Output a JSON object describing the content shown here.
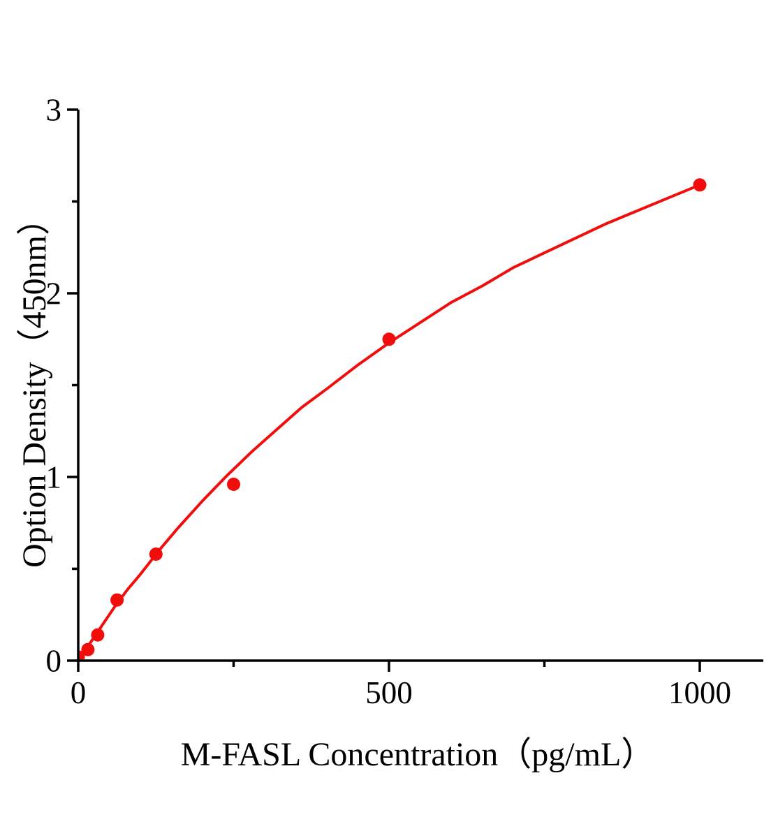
{
  "chart_data": {
    "type": "scatter",
    "title": "",
    "xlabel": "M-FASL Concentration（pg/mL）",
    "ylabel": "Option Density（450nm）",
    "x_unit": "pg/mL",
    "y_unit": "OD at 450nm",
    "xlim": [
      0,
      1105
    ],
    "ylim": [
      0,
      3
    ],
    "grid": false,
    "legend": null,
    "x_ticks_major": [
      0,
      500,
      1000
    ],
    "x_ticks_minor": [
      250,
      750
    ],
    "y_ticks_major": [
      0,
      1,
      2,
      3
    ],
    "y_ticks_minor": [
      0.5,
      1.5,
      2.5
    ],
    "x_tick_labels": [
      "0",
      "500",
      "1000"
    ],
    "y_tick_labels": [
      "0",
      "1",
      "2",
      "3"
    ],
    "points": [
      {
        "x": 0,
        "y": 0.02
      },
      {
        "x": 15.6,
        "y": 0.06
      },
      {
        "x": 31.3,
        "y": 0.14
      },
      {
        "x": 62.5,
        "y": 0.33
      },
      {
        "x": 125,
        "y": 0.58
      },
      {
        "x": 250,
        "y": 0.96
      },
      {
        "x": 500,
        "y": 1.75
      },
      {
        "x": 1000,
        "y": 2.59
      }
    ],
    "fit_curve": [
      [
        0,
        0.0
      ],
      [
        20,
        0.1
      ],
      [
        40,
        0.2
      ],
      [
        60,
        0.3
      ],
      [
        80,
        0.39
      ],
      [
        100,
        0.47
      ],
      [
        130,
        0.6
      ],
      [
        160,
        0.72
      ],
      [
        200,
        0.87
      ],
      [
        240,
        1.01
      ],
      [
        280,
        1.14
      ],
      [
        320,
        1.26
      ],
      [
        360,
        1.38
      ],
      [
        400,
        1.48
      ],
      [
        450,
        1.61
      ],
      [
        500,
        1.73
      ],
      [
        550,
        1.84
      ],
      [
        600,
        1.95
      ],
      [
        650,
        2.04
      ],
      [
        700,
        2.14
      ],
      [
        750,
        2.22
      ],
      [
        800,
        2.3
      ],
      [
        850,
        2.38
      ],
      [
        900,
        2.45
      ],
      [
        950,
        2.52
      ],
      [
        1000,
        2.59
      ]
    ],
    "colors": {
      "series": "#f20d0d",
      "axis": "#000000",
      "background": "#ffffff",
      "tick_label": "#000000"
    }
  }
}
